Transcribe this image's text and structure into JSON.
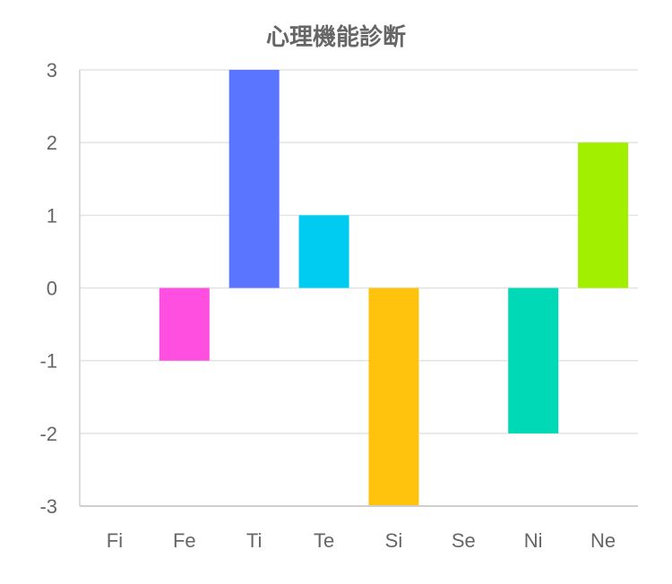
{
  "chart_data": {
    "type": "bar",
    "title": "心理機能診断",
    "xlabel": "",
    "ylabel": "",
    "categories": [
      "Fi",
      "Fe",
      "Ti",
      "Te",
      "Si",
      "Se",
      "Ni",
      "Ne"
    ],
    "values": [
      0,
      -1,
      3,
      1,
      -3,
      0,
      -2,
      2
    ],
    "colors": [
      "#ff4fe0",
      "#ff4fe0",
      "#5a75ff",
      "#00ccf2",
      "#ffc30d",
      "#ffc30d",
      "#00d9b5",
      "#a3ef00"
    ],
    "ylim": [
      -3,
      3
    ],
    "y_ticks": [
      "3",
      "2",
      "1",
      "0",
      "-1",
      "-2",
      "-3"
    ],
    "grid": true,
    "legend": "none"
  }
}
